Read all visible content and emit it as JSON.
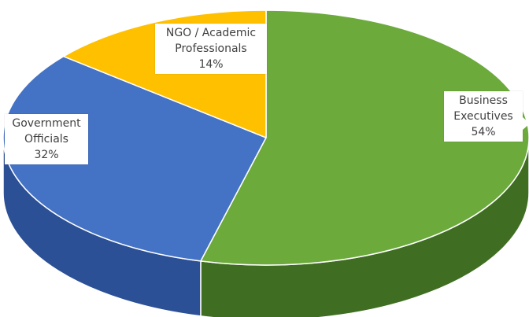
{
  "chart_data": {
    "type": "pie",
    "title": "",
    "slices": [
      {
        "label_lines": [
          "Business",
          "Executives"
        ],
        "value": 54,
        "display": "54%",
        "color": "#6CAA3C",
        "side_color": "#3F6E22"
      },
      {
        "label_lines": [
          "Government",
          "Officials"
        ],
        "value": 32,
        "display": "32%",
        "color": "#4472C4",
        "side_color": "#2C5095"
      },
      {
        "label_lines": [
          "NGO / Academic",
          "Professionals"
        ],
        "value": 14,
        "display": "14%",
        "color": "#FFC000",
        "side_color": "#C99400"
      }
    ],
    "style": "3d-pie",
    "legend": "none"
  }
}
